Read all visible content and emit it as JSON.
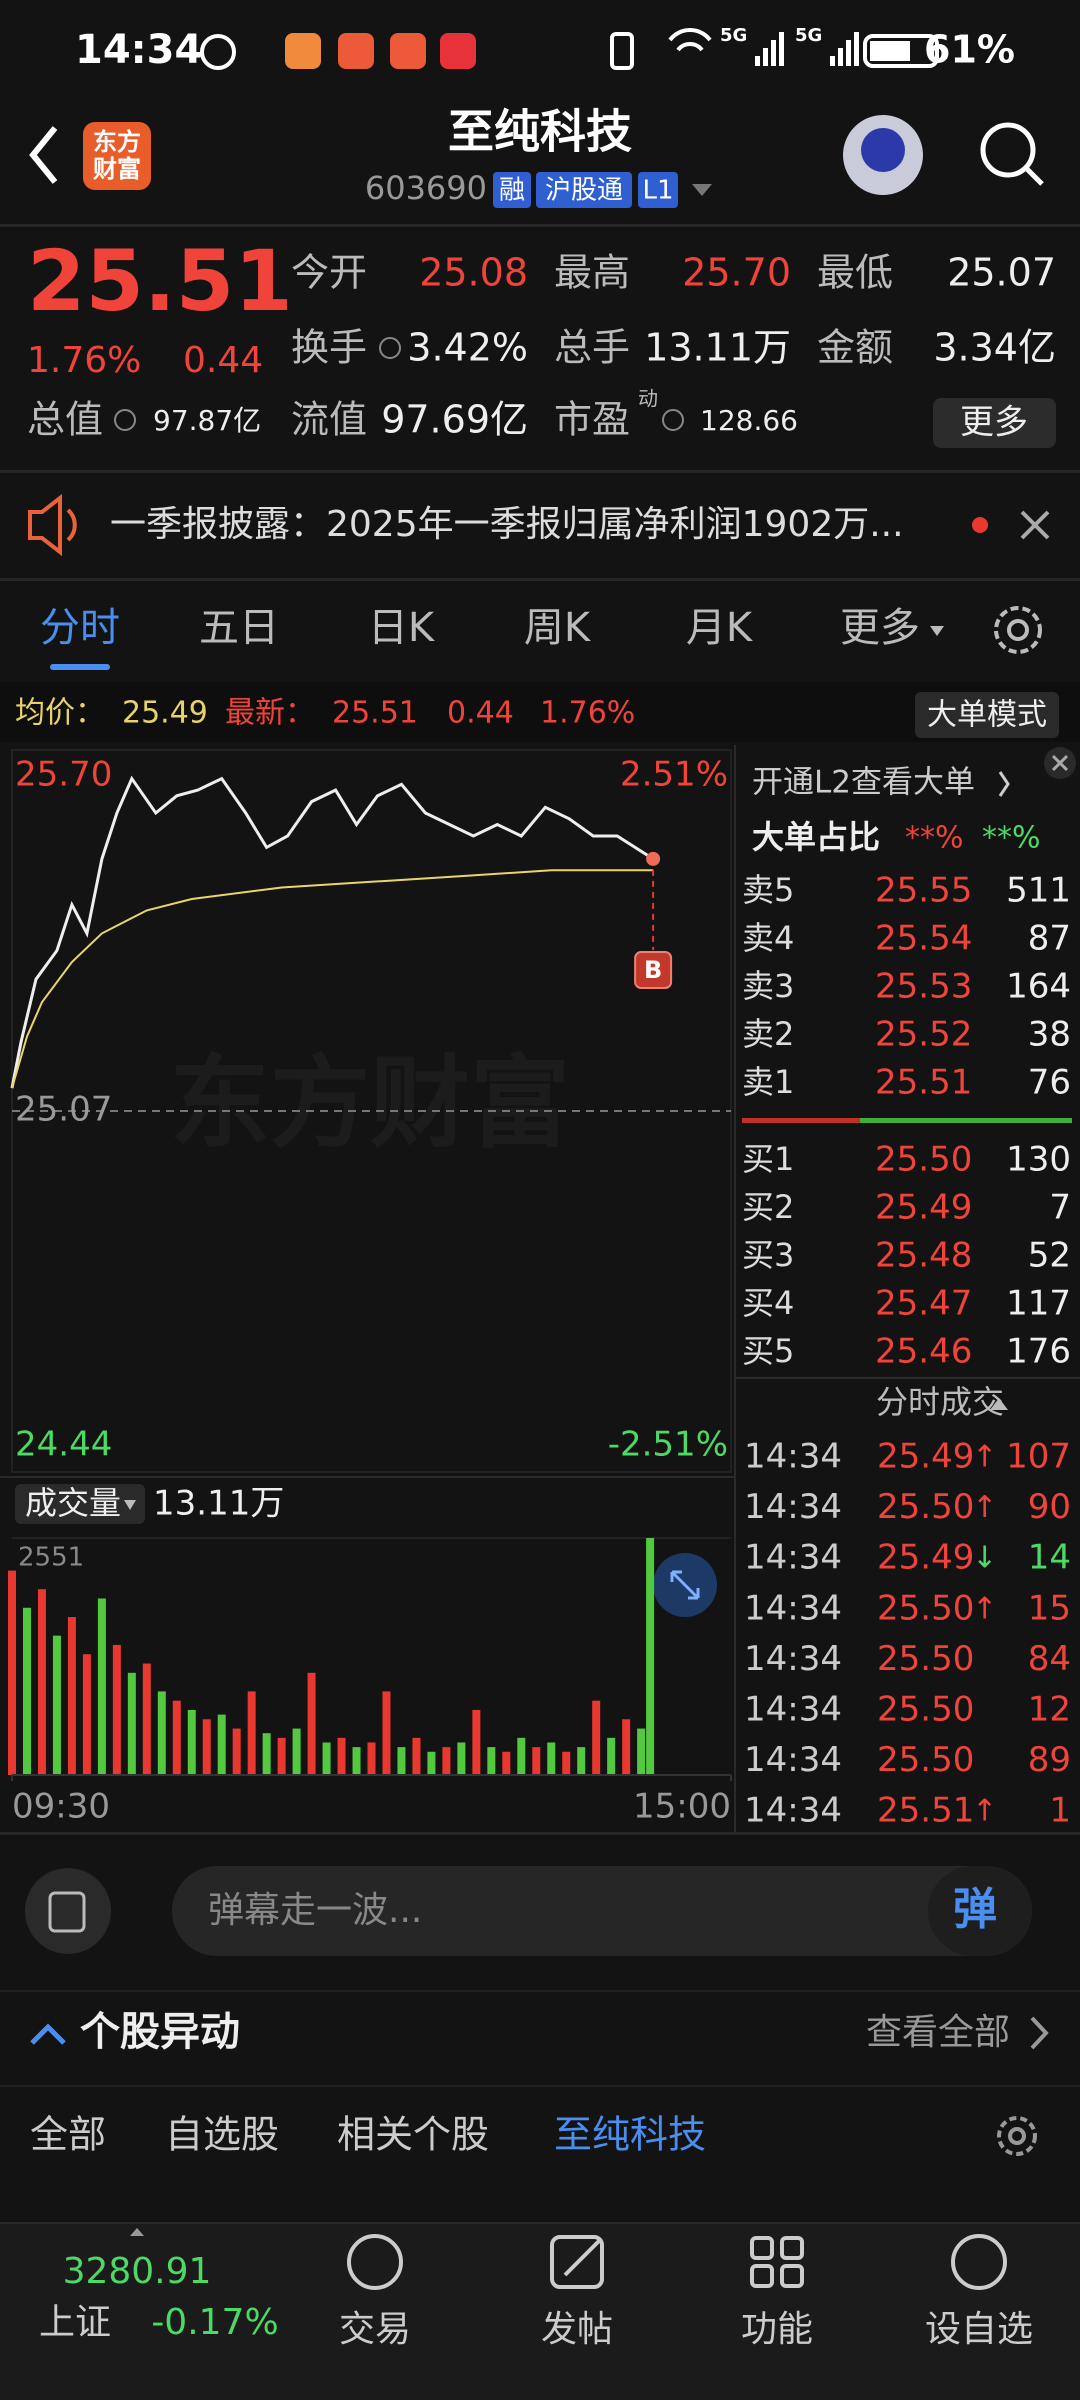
{
  "status_bar": {
    "time": "14:34",
    "network": [
      "5G",
      "5G"
    ],
    "battery": "61%"
  },
  "header": {
    "logo": [
      "东方",
      "财富"
    ],
    "title": "至纯科技",
    "code": "603690",
    "tags": [
      "融",
      "沪股通",
      "L1"
    ]
  },
  "quote": {
    "price": "25.51",
    "change_pct": "1.76%",
    "change": "0.44",
    "stats": [
      {
        "label": "今开",
        "value": "25.08",
        "color": "#f0443a"
      },
      {
        "label": "最高",
        "value": "25.70",
        "color": "#f0443a"
      },
      {
        "label": "最低",
        "value": "25.07"
      },
      {
        "label": "换手",
        "value": "3.42%"
      },
      {
        "label": "总手",
        "value": "13.11万"
      },
      {
        "label": "金额",
        "value": "3.34亿"
      },
      {
        "label": "总值",
        "value": "97.87亿"
      },
      {
        "label": "流值",
        "value": "97.69亿"
      },
      {
        "label": "市盈",
        "sup": "动",
        "value": "128.66"
      }
    ],
    "more": "更多"
  },
  "notice": "一季报披露：2025年一季报归属净利润1902万...",
  "tabs": {
    "items": [
      "分时",
      "五日",
      "日K",
      "周K",
      "月K",
      "更多"
    ],
    "active": 0
  },
  "info": {
    "avg_label": "均价：",
    "avg": "25.49",
    "last_label": "最新：",
    "last": "25.51",
    "change": "0.44",
    "change_pct": "1.76%",
    "mode_button": "大单模式"
  },
  "chart_data": [
    {
      "type": "line",
      "xlim": [
        0,
        240
      ],
      "ylim": [
        24.44,
        25.7
      ],
      "yticks": [
        {
          "value": 25.7,
          "label": "25.70"
        },
        {
          "value": 25.07,
          "label": "25.07"
        },
        {
          "value": 24.44,
          "label": "24.44"
        }
      ],
      "pct_labels": [
        "2.51%",
        "-2.51%"
      ],
      "watermark": "东方财富",
      "marker": "B",
      "series": [
        {
          "color": "#eeeeee",
          "x": [
            0,
            3,
            8,
            15,
            20,
            25,
            30,
            35,
            40,
            48,
            55,
            62,
            70,
            78,
            85,
            92,
            100,
            108,
            115,
            122,
            130,
            138,
            146,
            154,
            162,
            170,
            178,
            186,
            194,
            202,
            208,
            214
          ],
          "values": [
            25.11,
            25.19,
            25.3,
            25.35,
            25.43,
            25.38,
            25.51,
            25.59,
            25.65,
            25.59,
            25.62,
            25.63,
            25.65,
            25.59,
            25.53,
            25.55,
            25.61,
            25.63,
            25.57,
            25.62,
            25.64,
            25.59,
            25.57,
            25.55,
            25.57,
            25.55,
            25.6,
            25.58,
            25.55,
            25.55,
            25.53,
            25.51
          ]
        },
        {
          "color": "#e8d66c",
          "x": [
            0,
            5,
            10,
            20,
            30,
            45,
            60,
            90,
            120,
            150,
            180,
            214
          ],
          "values": [
            25.11,
            25.2,
            25.26,
            25.33,
            25.38,
            25.42,
            25.44,
            25.46,
            25.47,
            25.48,
            25.49,
            25.49
          ]
        }
      ]
    },
    {
      "type": "bar",
      "title": "成交量",
      "total": "13.11万",
      "xlim": [
        0,
        240
      ],
      "xticks": [
        {
          "value": 0,
          "label": "09:30"
        },
        {
          "value": 240,
          "label": "15:00"
        }
      ],
      "ylim": [
        0,
        2551
      ],
      "yticks": [
        2551
      ],
      "series": [
        {
          "color": "#e8382f",
          "x": [
            0,
            10,
            20,
            25,
            35,
            45,
            55,
            65,
            75,
            80,
            90,
            100,
            110,
            120,
            125,
            135,
            145,
            155,
            165,
            175,
            185,
            195,
            205
          ],
          "values": [
            2200,
            2000,
            1700,
            1300,
            1400,
            1200,
            800,
            600,
            500,
            900,
            400,
            1100,
            400,
            350,
            900,
            400,
            300,
            700,
            250,
            300,
            250,
            800,
            600
          ]
        },
        {
          "color": "#52c93f",
          "x": [
            5,
            15,
            30,
            40,
            50,
            60,
            70,
            85,
            95,
            105,
            115,
            130,
            140,
            150,
            160,
            170,
            180,
            190,
            200,
            210,
            213
          ],
          "values": [
            1800,
            1500,
            1900,
            1100,
            900,
            700,
            650,
            450,
            500,
            350,
            300,
            300,
            250,
            350,
            300,
            400,
            350,
            300,
            400,
            500,
            2551
          ]
        }
      ]
    }
  ],
  "order_book": {
    "l2_prompt": "开通L2查看大单",
    "ratio_label": "大单占比",
    "ratio_values": [
      "**%",
      "**%"
    ],
    "asks": [
      {
        "label": "卖5",
        "price": "25.55",
        "volume": "511"
      },
      {
        "label": "卖4",
        "price": "25.54",
        "volume": "87"
      },
      {
        "label": "卖3",
        "price": "25.53",
        "volume": "164"
      },
      {
        "label": "卖2",
        "price": "25.52",
        "volume": "38"
      },
      {
        "label": "卖1",
        "price": "25.51",
        "volume": "76"
      }
    ],
    "bids": [
      {
        "label": "买1",
        "price": "25.50",
        "volume": "130"
      },
      {
        "label": "买2",
        "price": "25.49",
        "volume": "7"
      },
      {
        "label": "买3",
        "price": "25.48",
        "volume": "52"
      },
      {
        "label": "买4",
        "price": "25.47",
        "volume": "117"
      },
      {
        "label": "买5",
        "price": "25.46",
        "volume": "176"
      }
    ]
  },
  "trades": {
    "title": "分时成交",
    "rows": [
      {
        "time": "14:34",
        "price": "25.49",
        "arrow": "↑",
        "volume": "107"
      },
      {
        "time": "14:34",
        "price": "25.50",
        "arrow": "↑",
        "volume": "90"
      },
      {
        "time": "14:34",
        "price": "25.49",
        "arrow": "↓",
        "volume": "14"
      },
      {
        "time": "14:34",
        "price": "25.50",
        "arrow": "↑",
        "volume": "15"
      },
      {
        "time": "14:34",
        "price": "25.50",
        "volume": "84"
      },
      {
        "time": "14:34",
        "price": "25.50",
        "volume": "12"
      },
      {
        "time": "14:34",
        "price": "25.50",
        "volume": "89"
      },
      {
        "time": "14:34",
        "price": "25.51",
        "arrow": "↑",
        "volume": "1"
      }
    ]
  },
  "danmu": {
    "placeholder": "弹幕走一波...",
    "button": "弹"
  },
  "movement": {
    "title": "个股异动",
    "view_all": "查看全部",
    "tabs": [
      "全部",
      "自选股",
      "相关个股",
      "至纯科技"
    ],
    "active": 3
  },
  "bottom_nav": {
    "index_value": "3280.91",
    "index_name": "上证",
    "index_change": "-0.17%",
    "items": [
      "交易",
      "发帖",
      "功能",
      "设自选"
    ]
  }
}
